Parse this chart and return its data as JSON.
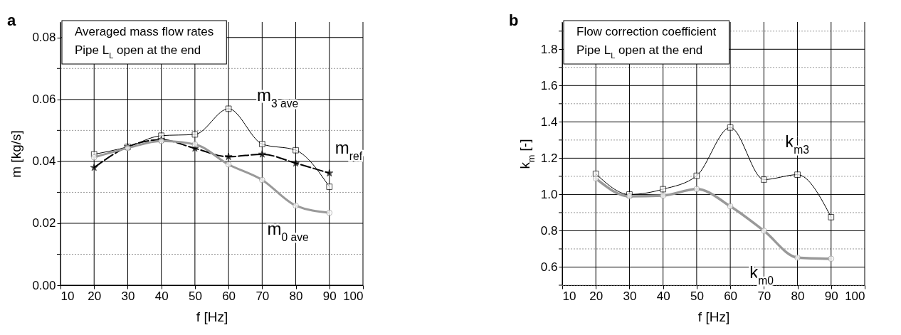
{
  "chart_data": [
    {
      "type": "line",
      "title": "Averaged mass flow rates",
      "subtitle": "Pipe L$_{L}$ open at the end",
      "xlabel": "f [Hz]",
      "ylabel": "m [kg/s]",
      "annotations": [
        "a"
      ],
      "x": [
        20,
        30,
        40,
        50,
        60,
        70,
        80,
        90
      ],
      "series": [
        {
          "name": "m$_{3 ave}$",
          "color": "#000000",
          "marker": "square",
          "line_style": "solid",
          "values": [
            0.0423,
            0.0447,
            0.0483,
            0.0487,
            0.057,
            0.0456,
            0.0436,
            0.0318
          ]
        },
        {
          "name": "m$_{ref}$",
          "color": "#000000",
          "marker": "star",
          "line_style": "dashed",
          "values": [
            0.038,
            0.0447,
            0.047,
            0.0442,
            0.0415,
            0.0423,
            0.0394,
            0.0362
          ]
        },
        {
          "name": "m$_{0 ave}$",
          "color": "#999999",
          "marker": "circle",
          "line_style": "solid",
          "values": [
            0.0413,
            0.0443,
            0.0466,
            0.0455,
            0.039,
            0.034,
            0.0257,
            0.0234
          ]
        }
      ],
      "xlim": [
        10,
        100
      ],
      "xticks": [
        10,
        20,
        30,
        40,
        50,
        60,
        70,
        80,
        90,
        100
      ],
      "ylim": [
        0,
        0.085
      ],
      "yticks": [
        {
          "value": 0,
          "label": "0.00"
        },
        {
          "value": 0.01,
          "label": null
        },
        0.02,
        {
          "value": 0.03,
          "label": null
        },
        0.04,
        {
          "value": 0.05,
          "label": null
        },
        0.06,
        {
          "value": 0.07,
          "label": null
        },
        0.08
      ],
      "grid": true
    },
    {
      "type": "line",
      "title": "Flow correction coefficient",
      "subtitle": "Pipe L$_{L}$ open at the end",
      "xlabel": "f [Hz]",
      "ylabel": "k$_{m}$ [-]",
      "annotations": [
        "b"
      ],
      "x": [
        20,
        30,
        40,
        50,
        60,
        70,
        80,
        90
      ],
      "series": [
        {
          "name": "k$_{m3}$",
          "color": "#000000",
          "marker": "square",
          "line_style": "solid",
          "values": [
            1.114,
            1.0,
            1.029,
            1.103,
            1.369,
            1.082,
            1.109,
            0.875
          ]
        },
        {
          "name": "k$_{m0}$",
          "color": "#999999",
          "marker": "circle",
          "line_style": "solid",
          "values": [
            1.088,
            0.99,
            0.994,
            1.03,
            0.935,
            0.8,
            0.652,
            0.646
          ]
        }
      ],
      "xlim": [
        10,
        100
      ],
      "xticks": [
        10,
        20,
        30,
        40,
        50,
        60,
        70,
        80,
        90,
        100
      ],
      "ylim": [
        0.5,
        1.95
      ],
      "yticks": [
        {
          "value": 0.5,
          "label": null
        },
        0.6,
        {
          "value": 0.7,
          "label": null
        },
        0.8,
        {
          "value": 0.9,
          "label": null
        },
        {
          "value": 1,
          "label": "1.0"
        },
        {
          "value": 1.1,
          "label": null
        },
        1.2,
        {
          "value": 1.3,
          "label": null
        },
        1.4,
        {
          "value": 1.5,
          "label": null
        },
        1.6,
        {
          "value": 1.7,
          "label": null
        },
        1.8,
        {
          "value": 1.9,
          "label": null
        }
      ],
      "grid": true
    }
  ]
}
